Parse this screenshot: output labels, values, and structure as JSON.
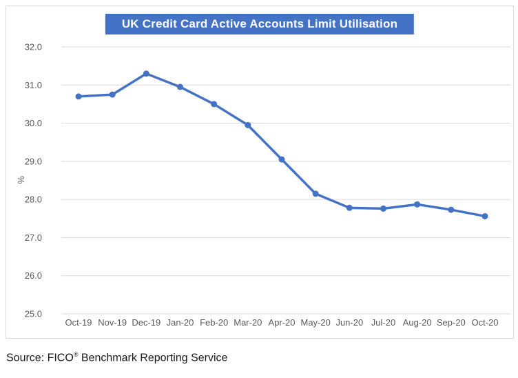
{
  "title": "UK Credit Card Active Accounts Limit Utilisation",
  "source": {
    "prefix": "Source: FICO",
    "registered_mark": "®",
    "suffix": " Benchmark Reporting Service"
  },
  "colors": {
    "accent": "#4472C4",
    "grid": "#d9d9d9",
    "tick_text": "#595959",
    "title_bg": "#4472C4",
    "title_text": "#ffffff",
    "border": "#d9d9d9"
  },
  "chart_data": {
    "type": "line",
    "title": "UK Credit Card Active Accounts Limit Utilisation",
    "categories": [
      "Oct-19",
      "Nov-19",
      "Dec-19",
      "Jan-20",
      "Feb-20",
      "Mar-20",
      "Apr-20",
      "May-20",
      "Jun-20",
      "Jul-20",
      "Aug-20",
      "Sep-20",
      "Oct-20"
    ],
    "values": [
      30.7,
      30.75,
      31.3,
      30.95,
      30.5,
      29.95,
      29.05,
      28.15,
      27.78,
      27.76,
      27.87,
      27.73,
      27.56
    ],
    "xlabel": "",
    "ylabel": "%",
    "ylim": [
      25.0,
      32.0
    ],
    "ytick_step": 1.0,
    "ytick_labels": [
      "32.0",
      "31.0",
      "30.0",
      "29.0",
      "28.0",
      "27.0",
      "26.0",
      "25.0"
    ],
    "grid": true,
    "legend": "none",
    "line_color": "#4472C4",
    "marker": "circle"
  }
}
